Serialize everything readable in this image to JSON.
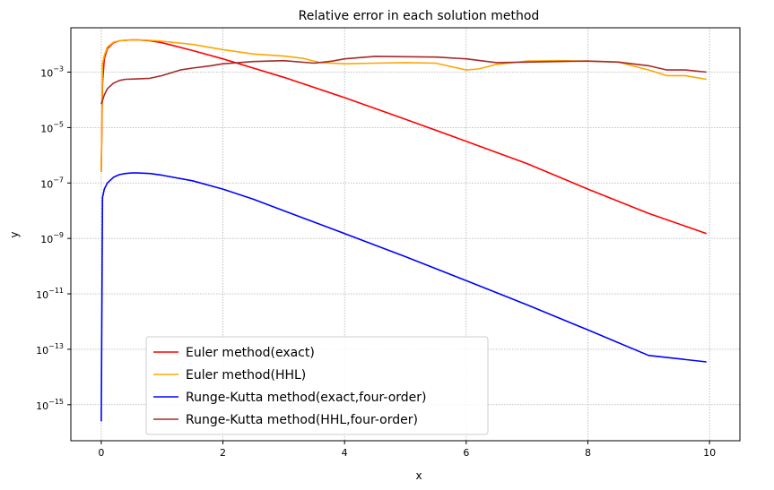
{
  "chart_data": {
    "type": "line",
    "title": "Relative error in each solution method",
    "xlabel": "x",
    "ylabel": "y",
    "xlim": [
      -0.5,
      10.5
    ],
    "ylim_exp": [
      -16.3,
      -1.4
    ],
    "yscale": "log",
    "grid": true,
    "grid_style": "dotted",
    "legend_position": "lower-left",
    "x_ticks": [
      {
        "value": 0,
        "label": "0"
      },
      {
        "value": 2,
        "label": "2"
      },
      {
        "value": 4,
        "label": "4"
      },
      {
        "value": 6,
        "label": "6"
      },
      {
        "value": 8,
        "label": "8"
      },
      {
        "value": 10,
        "label": "10"
      }
    ],
    "y_ticks": [
      {
        "exp": -15,
        "base": "10",
        "sup": "−15"
      },
      {
        "exp": -13,
        "base": "10",
        "sup": "−13"
      },
      {
        "exp": -11,
        "base": "10",
        "sup": "−11"
      },
      {
        "exp": -9,
        "base": "10",
        "sup": "−9"
      },
      {
        "exp": -7,
        "base": "10",
        "sup": "−7"
      },
      {
        "exp": -5,
        "base": "10",
        "sup": "−5"
      },
      {
        "exp": -3,
        "base": "10",
        "sup": "−3"
      }
    ],
    "series": [
      {
        "name": "Euler method(exact)",
        "color": "#ff0000",
        "x": [
          0,
          0.02,
          0.05,
          0.1,
          0.2,
          0.3,
          0.4,
          0.5,
          0.6,
          0.8,
          1.0,
          1.5,
          2.0,
          2.5,
          3.0,
          4.0,
          5.0,
          6.0,
          7.0,
          8.0,
          9.0,
          9.95
        ],
        "y": [
          2.5e-07,
          0.0004,
          0.003,
          0.007,
          0.0115,
          0.0135,
          0.0142,
          0.0145,
          0.0145,
          0.0135,
          0.0115,
          0.006,
          0.003,
          0.0014,
          0.00065,
          0.00012,
          2e-05,
          3.2e-06,
          5e-07,
          6e-08,
          8e-09,
          1.5e-09
        ]
      },
      {
        "name": "Euler method(HHL)",
        "color": "#ffa500",
        "x": [
          0,
          0.02,
          0.05,
          0.1,
          0.2,
          0.3,
          0.4,
          0.5,
          0.6,
          0.8,
          1.0,
          1.5,
          2.0,
          2.5,
          3.0,
          3.3,
          3.6,
          4.0,
          4.5,
          5.0,
          5.5,
          5.8,
          6.0,
          6.2,
          6.5,
          7.0,
          7.5,
          8.0,
          8.5,
          9.0,
          9.3,
          9.6,
          9.95
        ],
        "y": [
          2.5e-07,
          0.002,
          0.004,
          0.008,
          0.012,
          0.0135,
          0.0142,
          0.0145,
          0.0145,
          0.014,
          0.013,
          0.01,
          0.0065,
          0.0045,
          0.0038,
          0.0032,
          0.0022,
          0.002,
          0.0021,
          0.0022,
          0.0021,
          0.0015,
          0.0012,
          0.0013,
          0.0019,
          0.0025,
          0.0026,
          0.0025,
          0.0023,
          0.0012,
          0.00075,
          0.00075,
          0.00055
        ]
      },
      {
        "name": "Runge-Kutta method(exact,four-order)",
        "color": "#0000ff",
        "x": [
          0,
          0.02,
          0.05,
          0.1,
          0.2,
          0.3,
          0.4,
          0.5,
          0.6,
          0.8,
          1.0,
          1.5,
          2.0,
          2.5,
          3.0,
          4.0,
          5.0,
          6.0,
          7.0,
          8.0,
          9.0,
          9.95
        ],
        "y": [
          2.5e-16,
          3e-08,
          6e-08,
          1e-07,
          1.6e-07,
          2e-07,
          2.2e-07,
          2.3e-07,
          2.3e-07,
          2.2e-07,
          1.9e-07,
          1.2e-07,
          6e-08,
          2.6e-08,
          1e-08,
          1.5e-09,
          2.2e-10,
          3e-11,
          4e-12,
          5e-13,
          6e-14,
          3.5e-14
        ]
      },
      {
        "name": "Runge-Kutta method(HHL,four-order)",
        "color": "#a52a2a",
        "x": [
          0,
          0.05,
          0.1,
          0.2,
          0.3,
          0.4,
          0.5,
          0.8,
          1.0,
          1.3,
          1.5,
          1.8,
          2.0,
          2.5,
          3.0,
          3.5,
          3.8,
          4.0,
          4.5,
          5.0,
          5.5,
          6.0,
          6.5,
          7.0,
          7.5,
          8.0,
          8.5,
          9.0,
          9.3,
          9.6,
          9.95
        ],
        "y": [
          7e-05,
          0.00015,
          0.00025,
          0.0004,
          0.0005,
          0.00055,
          0.00056,
          0.0006,
          0.00075,
          0.0012,
          0.0014,
          0.0017,
          0.002,
          0.0024,
          0.0026,
          0.0021,
          0.0025,
          0.003,
          0.0037,
          0.0036,
          0.0035,
          0.003,
          0.0022,
          0.0023,
          0.0024,
          0.0025,
          0.0023,
          0.0017,
          0.0012,
          0.0012,
          0.001
        ]
      }
    ]
  }
}
